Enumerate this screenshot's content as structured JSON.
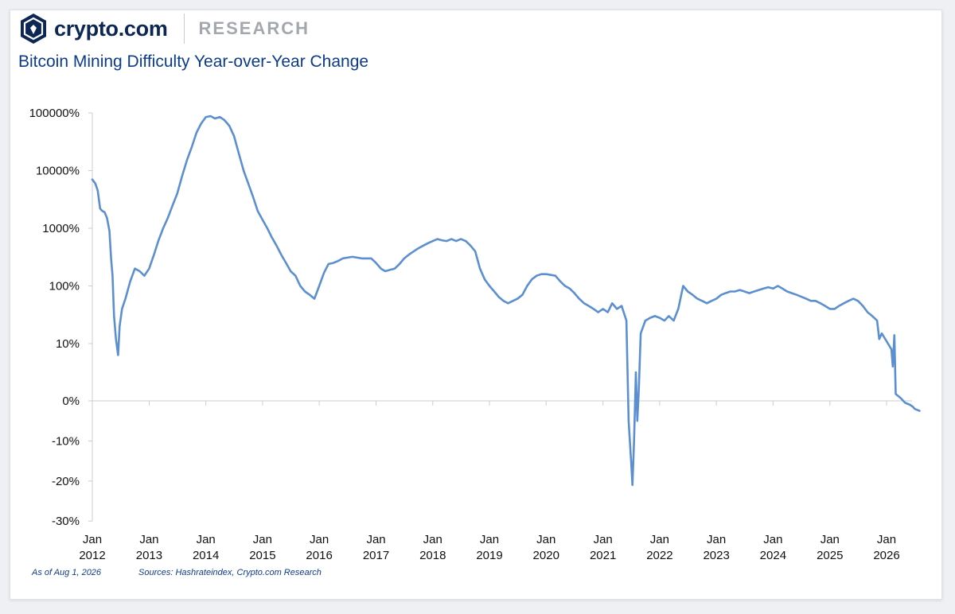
{
  "brand": {
    "name": "crypto.com",
    "section": "RESEARCH"
  },
  "colors": {
    "line": "#5b8fd0",
    "title": "#0d3b8c",
    "brand": "#0d2755",
    "axis": "#c9cdd2"
  },
  "footer": {
    "as_of": "As of Aug 1, 2026",
    "sources": "Sources: Hashrateindex, Crypto.com Research"
  },
  "chart_data": {
    "type": "line",
    "title": "Bitcoin Mining Difficulty Year-over-Year Change",
    "xlabel": "",
    "ylabel": "",
    "yscale": "symlog",
    "ylim": [
      -30,
      100000
    ],
    "xlim": [
      "2012-01-01",
      "2026-08-01"
    ],
    "grid": false,
    "yticks": [
      {
        "value": 100000,
        "label": "100000%"
      },
      {
        "value": 10000,
        "label": "10000%"
      },
      {
        "value": 1000,
        "label": "1000%"
      },
      {
        "value": 100,
        "label": "100%"
      },
      {
        "value": 10,
        "label": "10%"
      },
      {
        "value": 0,
        "label": "0%"
      },
      {
        "value": -10,
        "label": "-10%"
      },
      {
        "value": -20,
        "label": "-20%"
      },
      {
        "value": -30,
        "label": "-30%"
      }
    ],
    "xticks": [
      {
        "date": "2012-01-01",
        "line1": "Jan",
        "line2": "2012"
      },
      {
        "date": "2013-01-01",
        "line1": "Jan",
        "line2": "2013"
      },
      {
        "date": "2014-01-01",
        "line1": "Jan",
        "line2": "2014"
      },
      {
        "date": "2015-01-01",
        "line1": "Jan",
        "line2": "2015"
      },
      {
        "date": "2016-01-01",
        "line1": "Jan",
        "line2": "2016"
      },
      {
        "date": "2017-01-01",
        "line1": "Jan",
        "line2": "2017"
      },
      {
        "date": "2018-01-01",
        "line1": "Jan",
        "line2": "2018"
      },
      {
        "date": "2019-01-01",
        "line1": "Jan",
        "line2": "2019"
      },
      {
        "date": "2020-01-01",
        "line1": "Jan",
        "line2": "2020"
      },
      {
        "date": "2021-01-01",
        "line1": "Jan",
        "line2": "2021"
      },
      {
        "date": "2022-01-01",
        "line1": "Jan",
        "line2": "2022"
      },
      {
        "date": "2023-01-01",
        "line1": "Jan",
        "line2": "2023"
      },
      {
        "date": "2024-01-01",
        "line1": "Jan",
        "line2": "2024"
      },
      {
        "date": "2025-01-01",
        "line1": "Jan",
        "line2": "2025"
      },
      {
        "date": "2026-01-01",
        "line1": "Jan",
        "line2": "2026"
      }
    ],
    "series": [
      {
        "points": [
          [
            "2012-01-01",
            7000
          ],
          [
            "2012-01-20",
            6000
          ],
          [
            "2012-02-05",
            4500
          ],
          [
            "2012-02-20",
            2200
          ],
          [
            "2012-03-05",
            2000
          ],
          [
            "2012-03-20",
            1900
          ],
          [
            "2012-04-05",
            1500
          ],
          [
            "2012-04-20",
            900
          ],
          [
            "2012-05-01",
            300
          ],
          [
            "2012-05-10",
            150
          ],
          [
            "2012-05-20",
            30
          ],
          [
            "2012-06-01",
            12
          ],
          [
            "2012-06-15",
            8
          ],
          [
            "2012-06-25",
            20
          ],
          [
            "2012-07-10",
            40
          ],
          [
            "2012-08-01",
            60
          ],
          [
            "2012-09-01",
            120
          ],
          [
            "2012-10-01",
            200
          ],
          [
            "2012-11-01",
            180
          ],
          [
            "2012-12-01",
            150
          ],
          [
            "2013-01-01",
            200
          ],
          [
            "2013-02-01",
            350
          ],
          [
            "2013-03-01",
            600
          ],
          [
            "2013-04-01",
            1000
          ],
          [
            "2013-05-01",
            1500
          ],
          [
            "2013-06-01",
            2500
          ],
          [
            "2013-07-01",
            4000
          ],
          [
            "2013-08-01",
            8000
          ],
          [
            "2013-09-01",
            15000
          ],
          [
            "2013-10-01",
            25000
          ],
          [
            "2013-11-01",
            45000
          ],
          [
            "2013-12-01",
            65000
          ],
          [
            "2014-01-01",
            85000
          ],
          [
            "2014-02-01",
            88000
          ],
          [
            "2014-03-01",
            80000
          ],
          [
            "2014-04-01",
            85000
          ],
          [
            "2014-05-01",
            75000
          ],
          [
            "2014-06-01",
            60000
          ],
          [
            "2014-07-01",
            40000
          ],
          [
            "2014-08-01",
            20000
          ],
          [
            "2014-09-01",
            10000
          ],
          [
            "2014-10-01",
            6000
          ],
          [
            "2014-11-01",
            3500
          ],
          [
            "2014-12-01",
            2000
          ],
          [
            "2015-01-01",
            1400
          ],
          [
            "2015-02-01",
            1000
          ],
          [
            "2015-03-01",
            700
          ],
          [
            "2015-04-01",
            500
          ],
          [
            "2015-05-01",
            350
          ],
          [
            "2015-06-01",
            250
          ],
          [
            "2015-07-01",
            180
          ],
          [
            "2015-08-01",
            150
          ],
          [
            "2015-09-01",
            100
          ],
          [
            "2015-10-01",
            80
          ],
          [
            "2015-11-01",
            70
          ],
          [
            "2015-12-01",
            60
          ],
          [
            "2016-01-01",
            100
          ],
          [
            "2016-02-01",
            170
          ],
          [
            "2016-03-01",
            240
          ],
          [
            "2016-04-01",
            250
          ],
          [
            "2016-05-01",
            270
          ],
          [
            "2016-06-01",
            300
          ],
          [
            "2016-08-01",
            320
          ],
          [
            "2016-10-01",
            300
          ],
          [
            "2016-12-01",
            300
          ],
          [
            "2017-01-01",
            250
          ],
          [
            "2017-02-01",
            200
          ],
          [
            "2017-03-01",
            180
          ],
          [
            "2017-04-01",
            190
          ],
          [
            "2017-05-01",
            200
          ],
          [
            "2017-06-01",
            240
          ],
          [
            "2017-07-01",
            300
          ],
          [
            "2017-08-01",
            350
          ],
          [
            "2017-09-01",
            400
          ],
          [
            "2017-10-01",
            450
          ],
          [
            "2017-11-01",
            500
          ],
          [
            "2017-12-01",
            550
          ],
          [
            "2018-01-01",
            600
          ],
          [
            "2018-02-01",
            650
          ],
          [
            "2018-03-01",
            620
          ],
          [
            "2018-04-01",
            600
          ],
          [
            "2018-05-01",
            650
          ],
          [
            "2018-06-01",
            600
          ],
          [
            "2018-07-01",
            650
          ],
          [
            "2018-08-01",
            600
          ],
          [
            "2018-09-01",
            500
          ],
          [
            "2018-10-01",
            400
          ],
          [
            "2018-11-01",
            200
          ],
          [
            "2018-12-01",
            130
          ],
          [
            "2019-01-01",
            100
          ],
          [
            "2019-02-01",
            80
          ],
          [
            "2019-03-01",
            65
          ],
          [
            "2019-04-01",
            55
          ],
          [
            "2019-05-01",
            50
          ],
          [
            "2019-06-01",
            55
          ],
          [
            "2019-07-01",
            60
          ],
          [
            "2019-08-01",
            70
          ],
          [
            "2019-09-01",
            100
          ],
          [
            "2019-10-01",
            130
          ],
          [
            "2019-11-01",
            150
          ],
          [
            "2019-12-01",
            160
          ],
          [
            "2020-01-01",
            160
          ],
          [
            "2020-02-01",
            155
          ],
          [
            "2020-03-01",
            150
          ],
          [
            "2020-04-01",
            120
          ],
          [
            "2020-05-01",
            100
          ],
          [
            "2020-06-01",
            90
          ],
          [
            "2020-07-01",
            75
          ],
          [
            "2020-08-01",
            60
          ],
          [
            "2020-09-01",
            50
          ],
          [
            "2020-10-01",
            45
          ],
          [
            "2020-11-01",
            40
          ],
          [
            "2020-12-01",
            35
          ],
          [
            "2021-01-01",
            40
          ],
          [
            "2021-02-01",
            35
          ],
          [
            "2021-03-01",
            50
          ],
          [
            "2021-04-01",
            40
          ],
          [
            "2021-05-01",
            45
          ],
          [
            "2021-06-01",
            25
          ],
          [
            "2021-06-15",
            -5
          ],
          [
            "2021-07-01",
            -15
          ],
          [
            "2021-07-10",
            -21
          ],
          [
            "2021-07-20",
            -10
          ],
          [
            "2021-08-01",
            5
          ],
          [
            "2021-08-10",
            -5
          ],
          [
            "2021-08-20",
            2
          ],
          [
            "2021-09-01",
            15
          ],
          [
            "2021-10-01",
            25
          ],
          [
            "2021-11-01",
            28
          ],
          [
            "2021-12-01",
            30
          ],
          [
            "2022-01-01",
            28
          ],
          [
            "2022-02-01",
            25
          ],
          [
            "2022-03-01",
            30
          ],
          [
            "2022-04-01",
            25
          ],
          [
            "2022-05-01",
            40
          ],
          [
            "2022-06-01",
            100
          ],
          [
            "2022-07-01",
            80
          ],
          [
            "2022-08-01",
            70
          ],
          [
            "2022-09-01",
            60
          ],
          [
            "2022-10-01",
            55
          ],
          [
            "2022-11-01",
            50
          ],
          [
            "2022-12-01",
            55
          ],
          [
            "2023-01-01",
            60
          ],
          [
            "2023-02-01",
            70
          ],
          [
            "2023-03-01",
            75
          ],
          [
            "2023-04-01",
            80
          ],
          [
            "2023-05-01",
            80
          ],
          [
            "2023-06-01",
            85
          ],
          [
            "2023-07-01",
            80
          ],
          [
            "2023-08-01",
            75
          ],
          [
            "2023-09-01",
            80
          ],
          [
            "2023-10-01",
            85
          ],
          [
            "2023-11-01",
            90
          ],
          [
            "2023-12-01",
            95
          ],
          [
            "2024-01-01",
            90
          ],
          [
            "2024-02-01",
            100
          ],
          [
            "2024-03-01",
            90
          ],
          [
            "2024-04-01",
            80
          ],
          [
            "2024-05-01",
            75
          ],
          [
            "2024-06-01",
            70
          ],
          [
            "2024-07-01",
            65
          ],
          [
            "2024-08-01",
            60
          ],
          [
            "2024-09-01",
            55
          ],
          [
            "2024-10-01",
            55
          ],
          [
            "2024-11-01",
            50
          ],
          [
            "2024-12-01",
            45
          ],
          [
            "2025-01-01",
            40
          ],
          [
            "2025-02-01",
            40
          ],
          [
            "2025-03-01",
            45
          ],
          [
            "2025-04-01",
            50
          ],
          [
            "2025-05-01",
            55
          ],
          [
            "2025-06-01",
            60
          ],
          [
            "2025-07-01",
            55
          ],
          [
            "2025-08-01",
            45
          ],
          [
            "2025-09-01",
            35
          ],
          [
            "2025-10-01",
            30
          ],
          [
            "2025-11-01",
            25
          ],
          [
            "2025-11-15",
            12
          ],
          [
            "2025-12-01",
            15
          ],
          [
            "2026-01-01",
            11
          ],
          [
            "2026-02-01",
            9
          ],
          [
            "2026-02-10",
            6
          ],
          [
            "2026-02-20",
            14
          ],
          [
            "2026-03-01",
            1.2
          ],
          [
            "2026-04-01",
            0.5
          ],
          [
            "2026-05-01",
            -0.5
          ],
          [
            "2026-06-01",
            -1
          ],
          [
            "2026-06-20",
            -1.5
          ],
          [
            "2026-07-01",
            -2
          ],
          [
            "2026-08-01",
            -2.5
          ]
        ]
      }
    ]
  }
}
